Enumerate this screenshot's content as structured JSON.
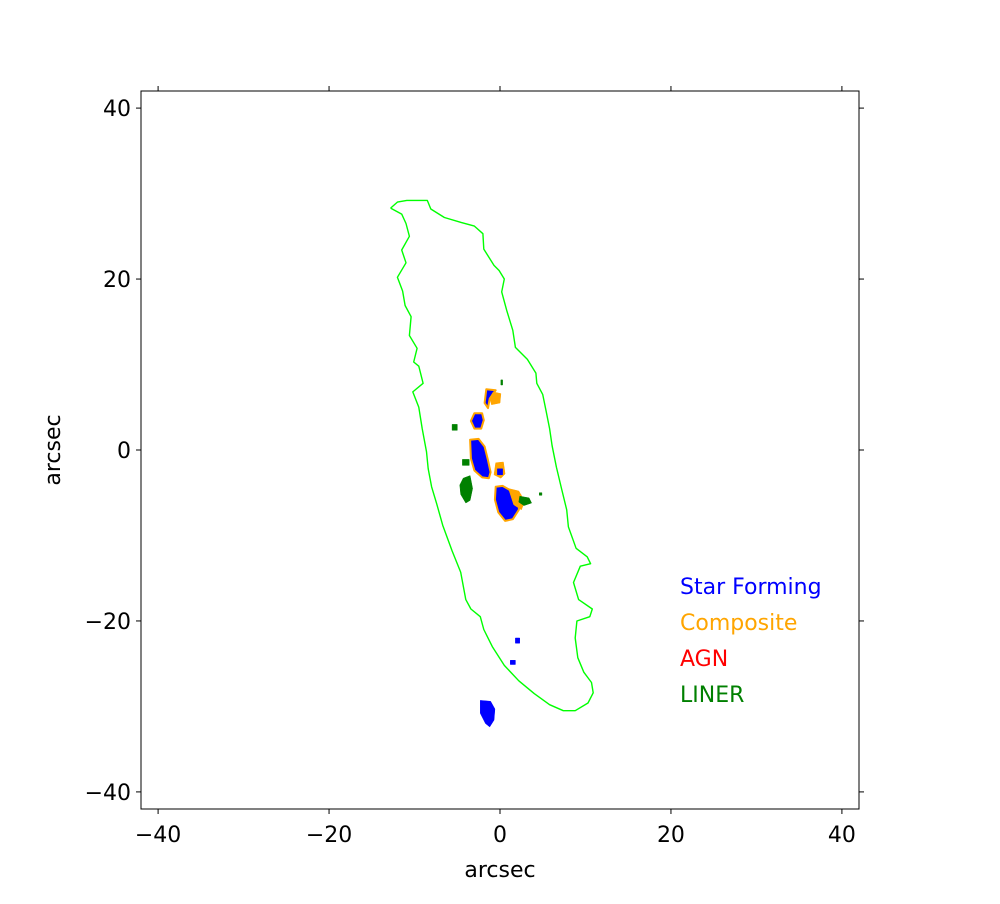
{
  "chart_data": {
    "type": "scatter",
    "xlabel": "arcsec",
    "ylabel": "arcsec",
    "xlim": [
      -42,
      42
    ],
    "ylim": [
      -42,
      42
    ],
    "x_ticks": [
      -40,
      -20,
      0,
      20,
      40
    ],
    "y_ticks": [
      40,
      20,
      0,
      -20,
      -40
    ],
    "x_tick_labels": [
      "−40",
      "−20",
      "0",
      "20",
      "40"
    ],
    "y_tick_labels": [
      "40",
      "20",
      "0",
      "−20",
      "−40"
    ],
    "grid": false,
    "legend_placement": "lower-right",
    "legend": [
      {
        "label": "Star Forming",
        "color": "#0000ff"
      },
      {
        "label": "Composite",
        "color": "#ffa500"
      },
      {
        "label": "AGN",
        "color": "#ff0000"
      },
      {
        "label": "LINER",
        "color": "#008000"
      }
    ],
    "contour": {
      "color": "#00ff00",
      "points": [
        [
          -12.8,
          28.3
        ],
        [
          -12.0,
          29.0
        ],
        [
          -10.9,
          29.2
        ],
        [
          -8.5,
          29.2
        ],
        [
          -8.1,
          28.2
        ],
        [
          -6.5,
          27.2
        ],
        [
          -4.5,
          26.6
        ],
        [
          -3.0,
          26.2
        ],
        [
          -2.0,
          25.3
        ],
        [
          -1.9,
          23.5
        ],
        [
          -0.7,
          21.6
        ],
        [
          -0.1,
          21.0
        ],
        [
          0.5,
          20.0
        ],
        [
          0.2,
          18.5
        ],
        [
          0.8,
          16.3
        ],
        [
          1.5,
          14.0
        ],
        [
          1.8,
          12.0
        ],
        [
          3.2,
          10.6
        ],
        [
          4.2,
          9.0
        ],
        [
          4.3,
          7.8
        ],
        [
          5.0,
          6.5
        ],
        [
          5.4,
          4.5
        ],
        [
          5.8,
          2.5
        ],
        [
          6.1,
          0.5
        ],
        [
          6.6,
          -2.0
        ],
        [
          7.2,
          -4.5
        ],
        [
          7.8,
          -7.0
        ],
        [
          8.0,
          -9.0
        ],
        [
          8.9,
          -11.5
        ],
        [
          10.2,
          -12.5
        ],
        [
          10.6,
          -13.3
        ],
        [
          9.4,
          -13.6
        ],
        [
          8.6,
          -15.5
        ],
        [
          9.2,
          -17.5
        ],
        [
          10.8,
          -18.6
        ],
        [
          10.5,
          -19.5
        ],
        [
          9.0,
          -20.0
        ],
        [
          8.8,
          -22.0
        ],
        [
          9.1,
          -24.3
        ],
        [
          9.8,
          -26.0
        ],
        [
          10.7,
          -27.2
        ],
        [
          10.9,
          -28.4
        ],
        [
          10.3,
          -29.6
        ],
        [
          8.8,
          -30.5
        ],
        [
          7.4,
          -30.5
        ],
        [
          5.8,
          -29.8
        ],
        [
          4.0,
          -28.5
        ],
        [
          2.2,
          -27.0
        ],
        [
          0.5,
          -25.2
        ],
        [
          -0.9,
          -23.0
        ],
        [
          -1.9,
          -21.0
        ],
        [
          -2.3,
          -19.5
        ],
        [
          -3.4,
          -18.6
        ],
        [
          -4.0,
          -17.5
        ],
        [
          -4.6,
          -14.3
        ],
        [
          -5.6,
          -11.8
        ],
        [
          -6.7,
          -8.8
        ],
        [
          -7.4,
          -6.3
        ],
        [
          -8.0,
          -4.3
        ],
        [
          -8.4,
          -2.2
        ],
        [
          -8.6,
          -0.2
        ],
        [
          -9.1,
          2.5
        ],
        [
          -9.5,
          5.0
        ],
        [
          -10.2,
          6.8
        ],
        [
          -9.0,
          7.8
        ],
        [
          -9.5,
          9.8
        ],
        [
          -10.1,
          10.3
        ],
        [
          -9.7,
          11.9
        ],
        [
          -10.6,
          13.4
        ],
        [
          -10.4,
          15.6
        ],
        [
          -11.1,
          16.9
        ],
        [
          -11.4,
          18.6
        ],
        [
          -12.0,
          20.2
        ],
        [
          -11.0,
          21.9
        ],
        [
          -11.5,
          23.4
        ],
        [
          -10.6,
          25.0
        ],
        [
          -11.0,
          26.5
        ],
        [
          -11.5,
          27.6
        ],
        [
          -12.8,
          28.3
        ]
      ]
    },
    "regions": [
      {
        "class": "Star Forming",
        "color": "#0000ff",
        "outline": "#ffa500",
        "points": [
          [
            -1.6,
            7.1
          ],
          [
            -0.5,
            7.0
          ],
          [
            -1.2,
            6.0
          ],
          [
            -1.4,
            4.9
          ],
          [
            -1.8,
            5.5
          ]
        ]
      },
      {
        "class": "Composite",
        "color": "#ffa500",
        "points": [
          [
            -0.8,
            6.8
          ],
          [
            0.1,
            6.6
          ],
          [
            0.0,
            5.5
          ],
          [
            -1.0,
            5.3
          ],
          [
            -1.2,
            6.1
          ]
        ]
      },
      {
        "class": "LINER",
        "color": "#008000",
        "points": [
          [
            0.1,
            8.2
          ],
          [
            0.3,
            8.2
          ],
          [
            0.3,
            7.6
          ],
          [
            0.1,
            7.6
          ]
        ]
      },
      {
        "class": "Star Forming",
        "color": "#0000ff",
        "outline": "#ffa500",
        "points": [
          [
            -3.0,
            4.3
          ],
          [
            -2.1,
            4.3
          ],
          [
            -1.9,
            3.5
          ],
          [
            -2.2,
            2.5
          ],
          [
            -3.0,
            2.5
          ],
          [
            -3.4,
            3.4
          ]
        ]
      },
      {
        "class": "LINER",
        "color": "#008000",
        "points": [
          [
            -5.6,
            3.0
          ],
          [
            -5.0,
            3.0
          ],
          [
            -5.0,
            2.3
          ],
          [
            -5.6,
            2.3
          ]
        ]
      },
      {
        "class": "Star Forming",
        "color": "#0000ff",
        "outline": "#ffa500",
        "points": [
          [
            -3.5,
            1.2
          ],
          [
            -2.5,
            1.3
          ],
          [
            -1.8,
            0.4
          ],
          [
            -1.4,
            -1.2
          ],
          [
            -1.1,
            -2.6
          ],
          [
            -1.3,
            -3.3
          ],
          [
            -2.1,
            -3.2
          ],
          [
            -3.0,
            -2.4
          ],
          [
            -3.4,
            -1.0
          ]
        ]
      },
      {
        "class": "Composite",
        "color": "#ffa500",
        "points": [
          [
            -0.5,
            -1.5
          ],
          [
            0.4,
            -1.4
          ],
          [
            0.6,
            -2.8
          ],
          [
            0.1,
            -3.3
          ],
          [
            -0.7,
            -2.9
          ]
        ]
      },
      {
        "class": "Star Forming",
        "color": "#0000ff",
        "points": [
          [
            -0.3,
            -2.2
          ],
          [
            0.3,
            -2.2
          ],
          [
            0.3,
            -2.9
          ],
          [
            -0.3,
            -2.9
          ]
        ]
      },
      {
        "class": "LINER",
        "color": "#008000",
        "points": [
          [
            -4.4,
            -1.1
          ],
          [
            -3.6,
            -1.1
          ],
          [
            -3.6,
            -1.8
          ],
          [
            -4.4,
            -1.8
          ]
        ]
      },
      {
        "class": "LINER",
        "color": "#008000",
        "points": [
          [
            -4.3,
            -3.3
          ],
          [
            -3.5,
            -3.0
          ],
          [
            -3.2,
            -4.5
          ],
          [
            -3.5,
            -5.9
          ],
          [
            -4.0,
            -6.2
          ],
          [
            -4.6,
            -5.2
          ],
          [
            -4.7,
            -4.1
          ]
        ]
      },
      {
        "class": "Star Forming",
        "color": "#0000ff",
        "outline": "#ffa500",
        "points": [
          [
            -0.5,
            -4.3
          ],
          [
            0.3,
            -4.2
          ],
          [
            1.0,
            -4.6
          ],
          [
            2.4,
            -5.3
          ],
          [
            2.2,
            -7.0
          ],
          [
            1.5,
            -8.1
          ],
          [
            0.6,
            -8.3
          ],
          [
            -0.2,
            -7.3
          ],
          [
            -0.6,
            -5.8
          ]
        ]
      },
      {
        "class": "Composite",
        "color": "#ffa500",
        "points": [
          [
            1.0,
            -4.5
          ],
          [
            2.2,
            -4.8
          ],
          [
            2.9,
            -6.0
          ],
          [
            2.5,
            -7.0
          ],
          [
            1.6,
            -6.4
          ]
        ]
      },
      {
        "class": "LINER",
        "color": "#008000",
        "points": [
          [
            2.3,
            -5.4
          ],
          [
            3.4,
            -5.6
          ],
          [
            3.7,
            -6.2
          ],
          [
            2.8,
            -6.5
          ],
          [
            2.2,
            -6.1
          ]
        ]
      },
      {
        "class": "LINER",
        "color": "#008000",
        "points": [
          [
            4.6,
            -5.0
          ],
          [
            4.9,
            -5.0
          ],
          [
            4.9,
            -5.3
          ],
          [
            4.6,
            -5.3
          ]
        ]
      },
      {
        "class": "Star Forming",
        "color": "#0000ff",
        "points": [
          [
            1.8,
            -22.0
          ],
          [
            2.3,
            -22.0
          ],
          [
            2.3,
            -22.6
          ],
          [
            1.8,
            -22.6
          ]
        ]
      },
      {
        "class": "Star Forming",
        "color": "#0000ff",
        "points": [
          [
            1.2,
            -24.6
          ],
          [
            1.8,
            -24.6
          ],
          [
            1.8,
            -25.1
          ],
          [
            1.2,
            -25.1
          ]
        ]
      },
      {
        "class": "Star Forming",
        "color": "#0000ff",
        "points": [
          [
            -2.3,
            -29.3
          ],
          [
            -1.1,
            -29.4
          ],
          [
            -0.6,
            -30.3
          ],
          [
            -0.7,
            -31.6
          ],
          [
            -1.2,
            -32.4
          ],
          [
            -1.7,
            -32.0
          ],
          [
            -2.3,
            -30.8
          ]
        ]
      }
    ]
  }
}
